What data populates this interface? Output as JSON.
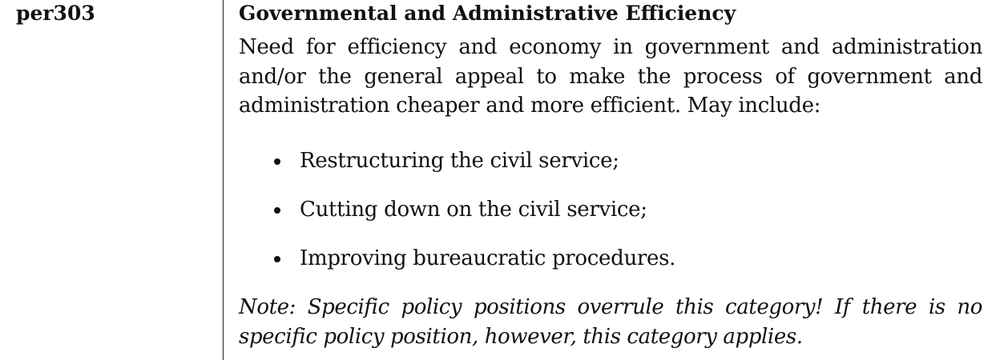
{
  "category": {
    "code": "per303",
    "title": "Governmental and Administrative Efficiency",
    "description": "Need for efficiency and economy in government and administration and/or the general appeal to make the process of government and administration cheaper and more efficient. May include:",
    "bullets": [
      "Restructuring the civil service;",
      "Cutting down on the civil service;",
      "Improving bureaucratic procedures."
    ],
    "note": "Note: Specific policy positions overrule this category! If there is no specific policy position, however, this category applies."
  }
}
